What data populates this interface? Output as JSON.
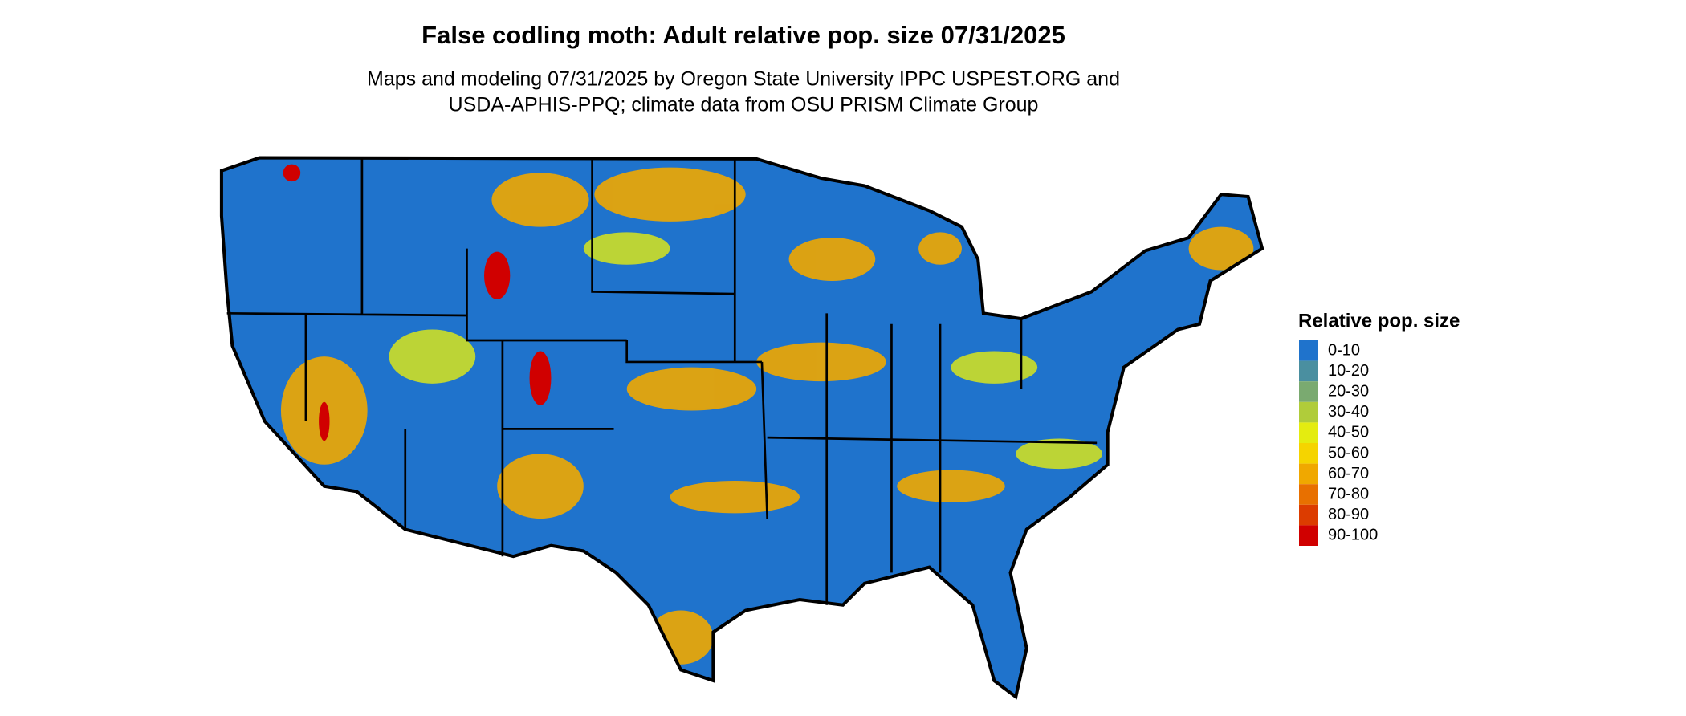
{
  "title": "False codling moth: Adult relative pop. size 07/31/2025",
  "subtitle": [
    "Maps and modeling 07/31/2025 by Oregon State University IPPC USPEST.ORG and",
    "USDA-APHIS-PPQ; climate data from OSU PRISM Climate Group"
  ],
  "legend": {
    "title": "Relative pop. size",
    "items": [
      {
        "label": "0-10",
        "color": "#1f73cc"
      },
      {
        "label": "10-20",
        "color": "#4a8fa0"
      },
      {
        "label": "20-30",
        "color": "#7aaa70"
      },
      {
        "label": "30-40",
        "color": "#b0cc3a"
      },
      {
        "label": "40-50",
        "color": "#e4ec10"
      },
      {
        "label": "50-60",
        "color": "#f5d400"
      },
      {
        "label": "60-70",
        "color": "#f0a800"
      },
      {
        "label": "70-80",
        "color": "#e87000"
      },
      {
        "label": "80-90",
        "color": "#dc3c00"
      },
      {
        "label": "90-100",
        "color": "#d00000"
      }
    ]
  }
}
